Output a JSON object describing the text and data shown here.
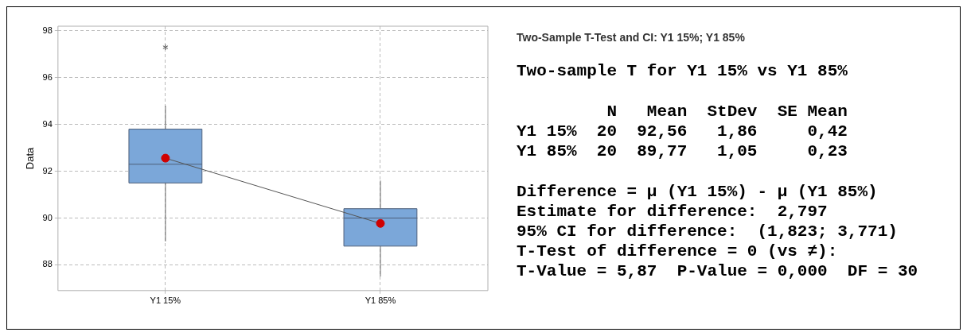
{
  "chart_data": [
    {
      "type": "box",
      "ylabel": "Data",
      "categories": [
        "Y1 15%",
        "Y1 85%"
      ],
      "ylim": [
        86.9,
        98.2
      ],
      "yticks": [
        88,
        90,
        92,
        94,
        96,
        98
      ],
      "grid": true,
      "legend": false,
      "series": [
        {
          "type": "box",
          "color": "#7ba7d9",
          "boxes": [
            {
              "low": 89.0,
              "q1": 91.5,
              "median": 92.3,
              "q3": 93.8,
              "high": 94.8,
              "outliers": [
                97.3
              ]
            },
            {
              "low": 87.5,
              "q1": 88.8,
              "median": 90.0,
              "q3": 90.4,
              "high": 91.6
            }
          ]
        },
        {
          "type": "line",
          "color": "#555555",
          "values": [
            92.56,
            89.77
          ],
          "marker": "none"
        },
        {
          "type": "scatter",
          "color": "#d00000",
          "values": [
            92.56,
            89.77
          ],
          "marker": "circle"
        }
      ]
    },
    {
      "type": "other",
      "title": "Two-Sample T-Test and CI: Y1 15%; Y1 85%",
      "annotations": [
        "Two-sample T for Y1 15% vs Y1 85%",
        "         N   Mean  StDev  SE Mean",
        "Y1 15%  20  92,56   1,86     0,42",
        "Y1 85%  20  89,77   1,05     0,23",
        "Difference = μ (Y1 15%) - μ (Y1 85%)",
        "Estimate for difference:  2,797",
        "95% CI for difference:  (1,823; 3,771)",
        "T-Test of difference = 0 (vs ≠):",
        "T-Value = 5,87  P-Value = 0,000  DF = 30"
      ]
    }
  ]
}
